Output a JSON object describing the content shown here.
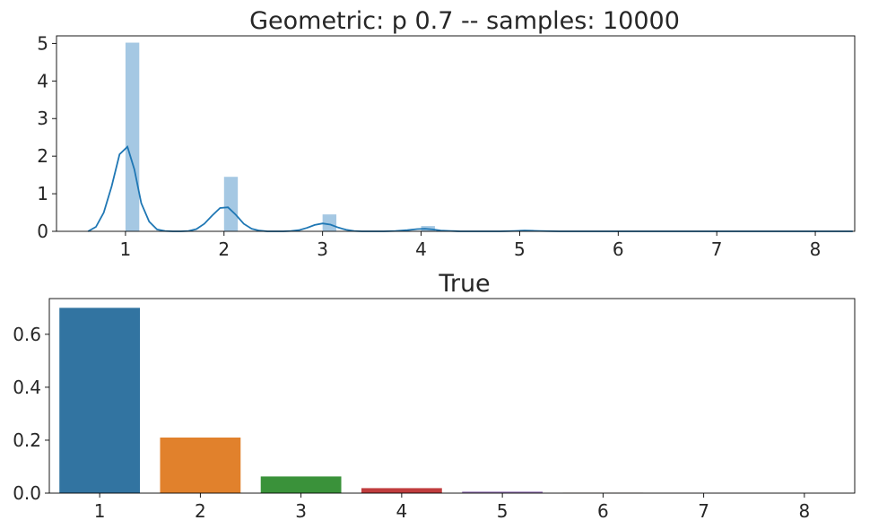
{
  "chart_data": [
    {
      "type": "histogram",
      "title": "Geometric: p 0.7 -- samples: 10000",
      "xlabel": "",
      "ylabel": "",
      "xlim": [
        0.3,
        8.4
      ],
      "ylim": [
        0,
        5.2
      ],
      "x_ticks": [
        1,
        2,
        3,
        4,
        5,
        6,
        7,
        8
      ],
      "y_ticks": [
        0,
        1,
        2,
        3,
        4,
        5
      ],
      "grid": false,
      "bar_color": "#a5c8e3",
      "kde_color": "#1f77b4",
      "bins": [
        {
          "x0": 1.0,
          "x1": 1.14,
          "density": 5.02
        },
        {
          "x0": 2.0,
          "x1": 2.14,
          "density": 1.45
        },
        {
          "x0": 3.0,
          "x1": 3.14,
          "density": 0.45
        },
        {
          "x0": 4.0,
          "x1": 4.14,
          "density": 0.14
        },
        {
          "x0": 5.0,
          "x1": 5.14,
          "density": 0.04
        }
      ],
      "kde": {
        "x": [
          0.62,
          0.7,
          0.78,
          0.86,
          0.94,
          1.02,
          1.09,
          1.16,
          1.24,
          1.32,
          1.4,
          1.48,
          1.56,
          1.64,
          1.72,
          1.8,
          1.88,
          1.96,
          2.04,
          2.12,
          2.2,
          2.28,
          2.36,
          2.44,
          2.52,
          2.6,
          2.68,
          2.76,
          2.84,
          2.92,
          3.0,
          3.08,
          3.16,
          3.24,
          3.32,
          3.4,
          3.5,
          3.62,
          3.74,
          3.86,
          3.96,
          4.04,
          4.12,
          4.2,
          4.3,
          4.4,
          4.6,
          4.8,
          4.95,
          5.05,
          5.2,
          5.4,
          5.8,
          6.2,
          6.6,
          7.0,
          7.4,
          7.8,
          8.2,
          8.38
        ],
        "y": [
          0.0,
          0.12,
          0.5,
          1.2,
          2.05,
          2.25,
          1.65,
          0.75,
          0.26,
          0.05,
          0.01,
          0.0,
          0.0,
          0.01,
          0.06,
          0.2,
          0.42,
          0.62,
          0.64,
          0.44,
          0.2,
          0.07,
          0.02,
          0.0,
          0.0,
          0.0,
          0.01,
          0.03,
          0.09,
          0.17,
          0.21,
          0.18,
          0.1,
          0.04,
          0.01,
          0.0,
          0.0,
          0.0,
          0.01,
          0.03,
          0.06,
          0.07,
          0.05,
          0.02,
          0.01,
          0.0,
          0.0,
          0.0,
          0.01,
          0.02,
          0.01,
          0.0,
          0.0,
          0.0,
          0.0,
          0.0,
          0.0,
          0.0,
          0.0,
          0.0
        ]
      }
    },
    {
      "type": "bar",
      "title": "True",
      "xlabel": "",
      "ylabel": "",
      "categories": [
        "1",
        "2",
        "3",
        "4",
        "5",
        "6",
        "7",
        "8"
      ],
      "values": [
        0.7,
        0.21,
        0.063,
        0.0189,
        0.00567,
        0.0017,
        0.00051,
        0.000153
      ],
      "ylim": [
        0,
        0.735
      ],
      "y_ticks": [
        0.0,
        0.2,
        0.4,
        0.6
      ],
      "y_tick_labels": [
        "0.0",
        "0.2",
        "0.4",
        "0.6"
      ],
      "grid": false,
      "colors": [
        "#3274a1",
        "#e1812c",
        "#3a923a",
        "#c03d3e",
        "#9372b2",
        "#845b53",
        "#d684bd",
        "#7f7f7f"
      ]
    }
  ]
}
